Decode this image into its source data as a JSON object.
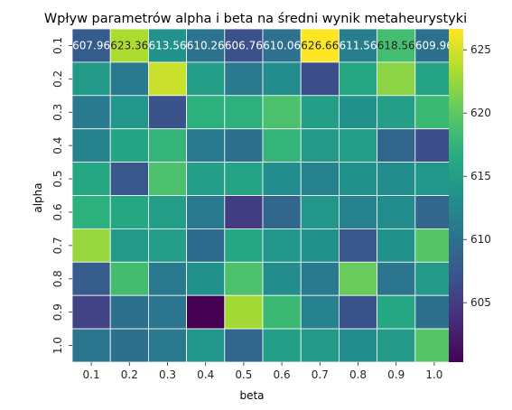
{
  "chart_data": {
    "type": "heatmap",
    "title": "Wpływ parametrów alpha i beta na średni wynik metaheurystyki",
    "xlabel": "beta",
    "ylabel": "alpha",
    "x_categories": [
      "0.1",
      "0.2",
      "0.3",
      "0.4",
      "0.5",
      "0.6",
      "0.7",
      "0.8",
      "0.9",
      "1.0"
    ],
    "y_categories": [
      "0.1",
      "0.2",
      "0.3",
      "0.4",
      "0.5",
      "0.6",
      "0.7",
      "0.8",
      "0.9",
      "1.0"
    ],
    "values": [
      [
        607.96,
        623.36,
        613.56,
        610.26,
        606.76,
        610.06,
        626.66,
        611.56,
        618.56,
        609.96
      ],
      [
        614.5,
        611.0,
        624.5,
        615.0,
        611.0,
        613.0,
        606.5,
        616.0,
        622.0,
        615.5
      ],
      [
        611.0,
        614.0,
        607.0,
        617.0,
        617.0,
        619.0,
        615.0,
        613.5,
        615.0,
        618.0
      ],
      [
        612.0,
        615.5,
        617.5,
        611.0,
        610.0,
        617.5,
        614.5,
        615.0,
        609.0,
        606.5
      ],
      [
        616.0,
        607.5,
        619.0,
        615.0,
        615.5,
        613.0,
        612.0,
        613.5,
        613.0,
        614.0
      ],
      [
        617.0,
        616.0,
        615.0,
        611.0,
        605.0,
        609.0,
        614.0,
        612.0,
        613.0,
        609.0
      ],
      [
        622.5,
        614.5,
        615.0,
        609.5,
        616.0,
        614.0,
        613.5,
        607.5,
        613.5,
        619.5
      ],
      [
        608.0,
        618.5,
        611.0,
        613.5,
        619.0,
        613.0,
        611.0,
        620.5,
        610.5,
        614.5
      ],
      [
        605.5,
        610.0,
        610.5,
        600.3,
        623.0,
        618.0,
        612.0,
        607.0,
        616.0,
        610.0
      ],
      [
        610.5,
        610.0,
        611.0,
        614.0,
        609.0,
        615.0,
        614.5,
        613.0,
        614.5,
        619.5
      ]
    ],
    "annotations_row_0": [
      "607.96",
      "623.36",
      "613.56",
      "610.26",
      "606.76",
      "610.06",
      "626.66",
      "611.56",
      "618.56",
      "609.96"
    ],
    "colormap": "viridis",
    "vmin": 600.3,
    "vmax": 626.66,
    "colorbar_ticks": [
      605,
      610,
      615,
      620,
      625
    ],
    "colorbar_tick_labels": [
      "605",
      "610",
      "615",
      "620",
      "625"
    ],
    "grid_line_color": "#ffffff"
  }
}
